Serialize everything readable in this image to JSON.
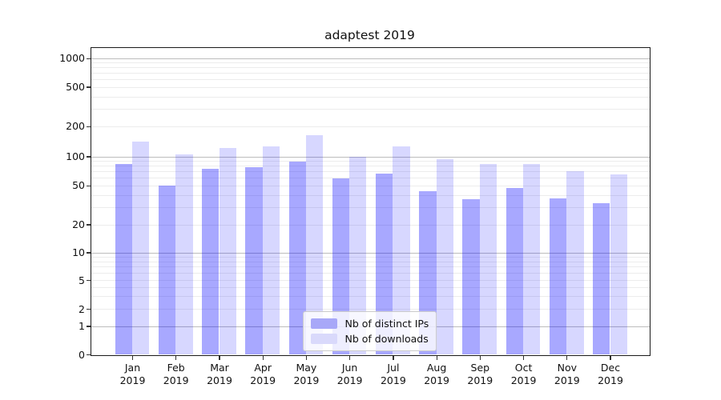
{
  "chart_data": {
    "type": "bar",
    "title": "adaptest 2019",
    "categories": [
      "Jan",
      "Feb",
      "Mar",
      "Apr",
      "May",
      "Jun",
      "Jul",
      "Aug",
      "Sep",
      "Oct",
      "Nov",
      "Dec"
    ],
    "category_year": "2019",
    "series": [
      {
        "name": "Nb of distinct IPs",
        "color_hex": "#a8a8f8",
        "fill": "rgba(0,0,255,0.34)",
        "values": [
          84,
          50,
          74,
          78,
          88,
          59,
          66,
          44,
          36,
          47,
          37,
          33
        ]
      },
      {
        "name": "Nb of downloads",
        "color_hex": "#d9d9fb",
        "fill": "rgba(0,0,255,0.155)",
        "values": [
          140,
          104,
          121,
          125,
          163,
          99,
          125,
          93,
          83,
          83,
          70,
          65
        ]
      }
    ],
    "xlabel": "",
    "ylabel": "",
    "yscale": "log above 1, linear 0-1 (symlog-like)",
    "y_ticks": [
      0,
      1,
      2,
      5,
      10,
      20,
      50,
      100,
      200,
      500,
      1000
    ],
    "ylim": [
      0,
      1280
    ],
    "grid": "horizontal, major decades darker + faint log minors",
    "legend_position": "inside plot, lower center-left"
  },
  "colors": {
    "background": "#ffffff",
    "major_grid": "#bdbdbd",
    "minor_grid": "#ececec",
    "spine": "#1a1a1a",
    "text": "#111111",
    "legend_border": "#cccccc"
  }
}
